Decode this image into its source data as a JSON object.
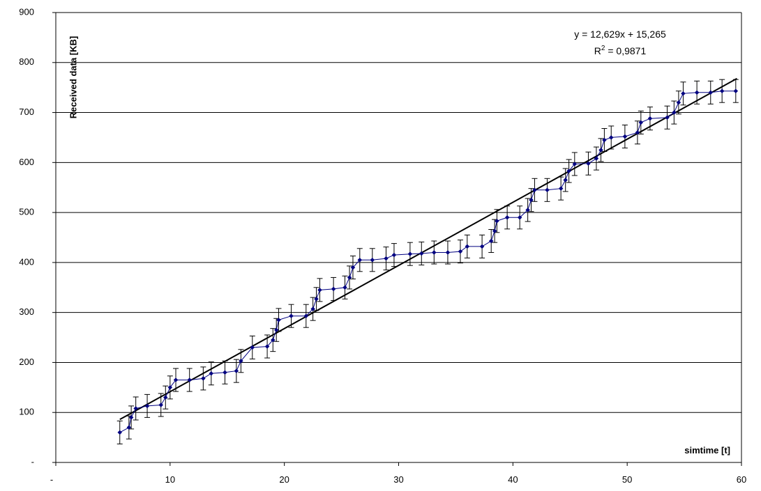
{
  "chart_data": {
    "type": "line",
    "xlabel": "simtime [t]",
    "ylabel": "Received data [KB]",
    "xlim": [
      0,
      60
    ],
    "ylim": [
      0,
      900
    ],
    "x_ticks": [
      0,
      10,
      20,
      30,
      40,
      50,
      60
    ],
    "x_tick_labels": [
      "-",
      "10",
      "20",
      "30",
      "40",
      "50",
      "60"
    ],
    "y_ticks": [
      0,
      100,
      200,
      300,
      400,
      500,
      600,
      700,
      800,
      900
    ],
    "y_tick_labels": [
      "-",
      "100",
      "200",
      "300",
      "400",
      "500",
      "600",
      "700",
      "800",
      "900"
    ],
    "grid": "horizontal",
    "series": [
      {
        "x": [
          5.6,
          6.4,
          6.6,
          7.0,
          8.0,
          9.2,
          9.6,
          10.0,
          10.5,
          11.7,
          12.9,
          13.6,
          14.8,
          15.8,
          16.2,
          17.2,
          18.5,
          19.0,
          19.3,
          19.5,
          20.6,
          21.9,
          22.5,
          22.8,
          23.1,
          24.3,
          25.3,
          25.7,
          26.0,
          26.6,
          27.7,
          28.9,
          29.6,
          31.0,
          32.0,
          33.1,
          34.3,
          35.4,
          36.0,
          37.3,
          38.1,
          38.4,
          38.6,
          39.5,
          40.6,
          41.3,
          41.6,
          41.9,
          43.0,
          44.2,
          44.6,
          44.9,
          45.4,
          46.6,
          47.3,
          47.7,
          48.0,
          48.6,
          49.8,
          50.9,
          51.2,
          52.0,
          53.5,
          54.1,
          54.5,
          54.9,
          56.1,
          57.3,
          58.3,
          59.5
        ],
        "y": [
          60,
          70,
          90,
          108,
          113,
          115,
          130,
          150,
          165,
          165,
          168,
          178,
          180,
          183,
          203,
          230,
          232,
          245,
          265,
          285,
          293,
          293,
          307,
          327,
          345,
          347,
          350,
          370,
          390,
          405,
          405,
          408,
          415,
          417,
          418,
          420,
          420,
          422,
          432,
          432,
          443,
          463,
          483,
          490,
          490,
          505,
          525,
          545,
          545,
          548,
          565,
          583,
          597,
          598,
          608,
          625,
          645,
          650,
          652,
          660,
          680,
          688,
          690,
          700,
          720,
          738,
          740,
          740,
          743,
          743
        ],
        "error": 23,
        "color": "#000080"
      }
    ],
    "trendline": {
      "slope": 12.629,
      "intercept": 15.265,
      "x_range": [
        5.6,
        59.6
      ],
      "equation": "y = 12,629x + 15,265",
      "r2_label": "R",
      "r2_power": "2",
      "r2_value": " = 0,9871",
      "color": "#000000"
    }
  }
}
